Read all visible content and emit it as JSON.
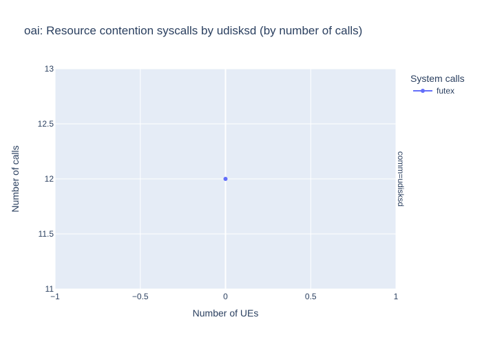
{
  "chart_data": {
    "type": "scatter",
    "title": "oai: Resource contention syscalls by udisksd (by number of calls)",
    "xlabel": "Number of UEs",
    "ylabel": "Number of calls",
    "xlim": [
      -1,
      1
    ],
    "ylim": [
      11,
      13
    ],
    "x_ticks": [
      -1,
      -0.5,
      0,
      0.5,
      1
    ],
    "x_tick_labels": [
      "−1",
      "−0.5",
      "0",
      "0.5",
      "1"
    ],
    "y_ticks": [
      11,
      11.5,
      12,
      12.5,
      13
    ],
    "y_tick_labels": [
      "11",
      "11.5",
      "12",
      "12.5",
      "13"
    ],
    "grid": true,
    "legend_title": "System calls",
    "legend_position": "top-right",
    "facet_label": "comm=udisksd",
    "series": [
      {
        "name": "futex",
        "color": "#636efa",
        "mode": "lines+markers",
        "x": [
          0
        ],
        "y": [
          12
        ]
      }
    ],
    "colors": {
      "plot_bg": "#e5ecf6",
      "grid": "#ffffff",
      "text": "#2a3f5f"
    }
  }
}
